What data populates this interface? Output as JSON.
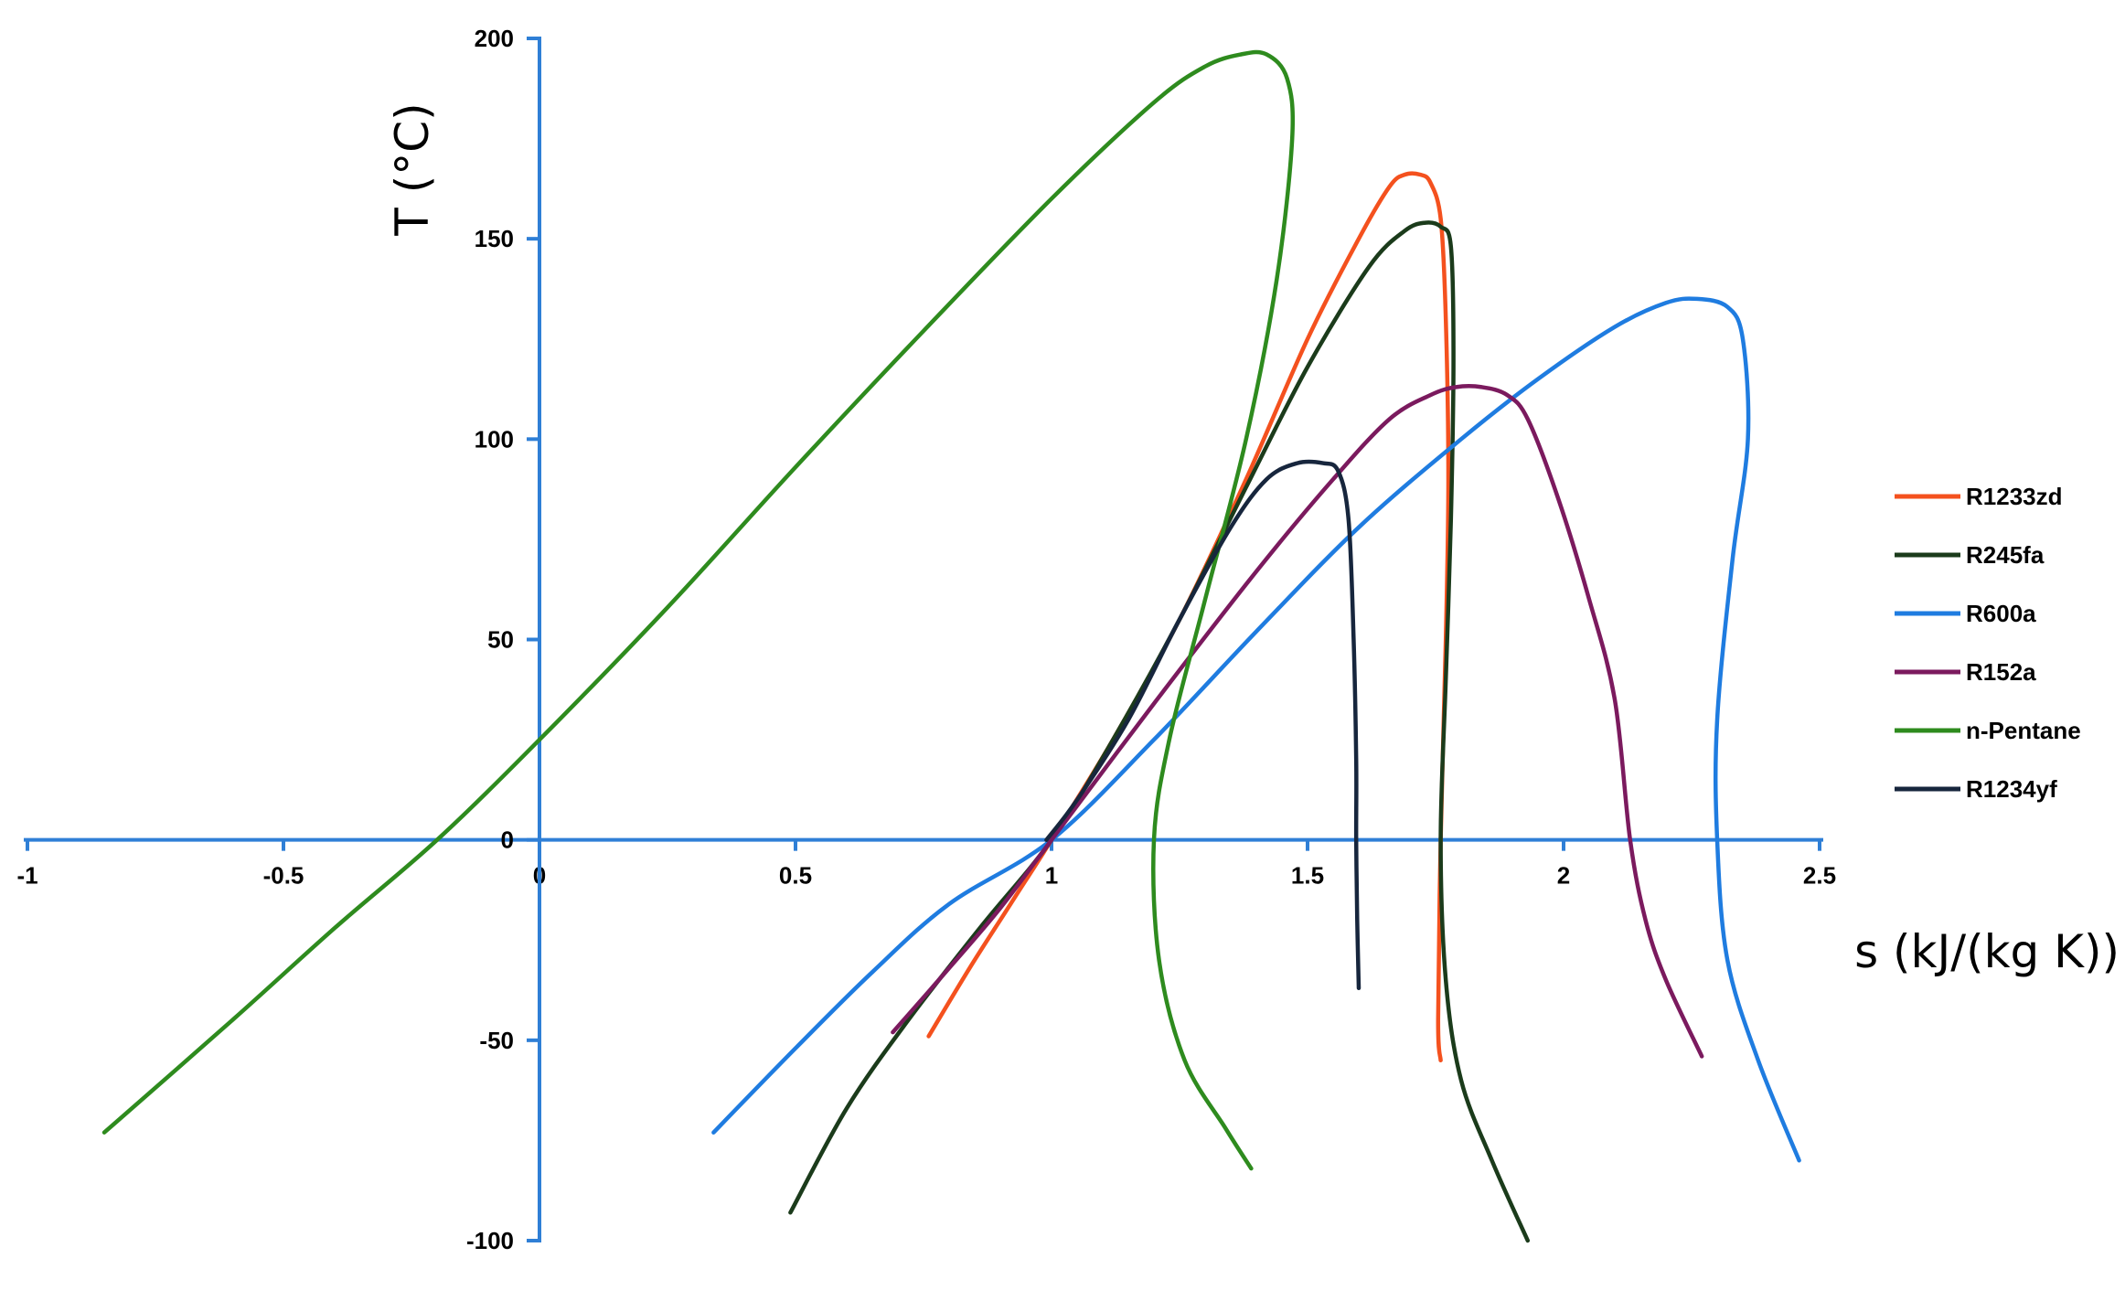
{
  "chart_data": {
    "type": "line",
    "title": "",
    "xlabel": "s (kJ/(kg K))",
    "ylabel": "T (°C)",
    "xlim": [
      -1,
      2.5
    ],
    "ylim": [
      -100,
      200
    ],
    "x_ticks": [
      "-1",
      "-0.5",
      "0",
      "0.5",
      "1",
      "1.5",
      "2",
      "2.5"
    ],
    "y_ticks": [
      "200",
      "150",
      "100",
      "50",
      "0",
      "-50",
      "-100"
    ],
    "grid": false,
    "legend_position": "right",
    "series": [
      {
        "name": "R1233zd",
        "color": "#f4511e",
        "points": [
          [
            0.76,
            -49
          ],
          [
            0.84,
            -32
          ],
          [
            0.92,
            -16
          ],
          [
            1.0,
            0
          ],
          [
            1.12,
            25
          ],
          [
            1.25,
            55
          ],
          [
            1.38,
            90
          ],
          [
            1.5,
            125
          ],
          [
            1.6,
            150
          ],
          [
            1.66,
            163
          ],
          [
            1.69,
            166
          ],
          [
            1.72,
            166
          ],
          [
            1.74,
            164
          ],
          [
            1.76,
            155
          ],
          [
            1.77,
            130
          ],
          [
            1.775,
            90
          ],
          [
            1.77,
            50
          ],
          [
            1.76,
            0
          ],
          [
            1.755,
            -45
          ],
          [
            1.76,
            -55
          ]
        ]
      },
      {
        "name": "R245fa",
        "color": "#1b3b1b",
        "points": [
          [
            0.49,
            -93
          ],
          [
            0.6,
            -67
          ],
          [
            0.72,
            -45
          ],
          [
            0.86,
            -22
          ],
          [
            1.0,
            0
          ],
          [
            1.12,
            25
          ],
          [
            1.25,
            55
          ],
          [
            1.38,
            88
          ],
          [
            1.5,
            118
          ],
          [
            1.62,
            143
          ],
          [
            1.69,
            152
          ],
          [
            1.73,
            154
          ],
          [
            1.76,
            153
          ],
          [
            1.78,
            148
          ],
          [
            1.785,
            120
          ],
          [
            1.78,
            80
          ],
          [
            1.77,
            40
          ],
          [
            1.76,
            0
          ],
          [
            1.77,
            -35
          ],
          [
            1.8,
            -60
          ],
          [
            1.86,
            -80
          ],
          [
            1.93,
            -100
          ]
        ]
      },
      {
        "name": "R600a",
        "color": "#1f7ce0",
        "points": [
          [
            0.34,
            -73
          ],
          [
            0.5,
            -52
          ],
          [
            0.65,
            -33
          ],
          [
            0.8,
            -16
          ],
          [
            1.0,
            0
          ],
          [
            1.2,
            25
          ],
          [
            1.4,
            52
          ],
          [
            1.6,
            78
          ],
          [
            1.8,
            100
          ],
          [
            1.95,
            115
          ],
          [
            2.1,
            128
          ],
          [
            2.2,
            134
          ],
          [
            2.26,
            135
          ],
          [
            2.32,
            133
          ],
          [
            2.35,
            125
          ],
          [
            2.36,
            100
          ],
          [
            2.33,
            70
          ],
          [
            2.3,
            30
          ],
          [
            2.3,
            0
          ],
          [
            2.32,
            -30
          ],
          [
            2.38,
            -55
          ],
          [
            2.46,
            -80
          ]
        ]
      },
      {
        "name": "R152a",
        "color": "#7b1a5e",
        "points": [
          [
            0.69,
            -48
          ],
          [
            0.8,
            -32
          ],
          [
            0.9,
            -17
          ],
          [
            1.0,
            0
          ],
          [
            1.2,
            34
          ],
          [
            1.4,
            67
          ],
          [
            1.55,
            90
          ],
          [
            1.66,
            105
          ],
          [
            1.74,
            111
          ],
          [
            1.79,
            113
          ],
          [
            1.84,
            113
          ],
          [
            1.89,
            111
          ],
          [
            1.93,
            105
          ],
          [
            1.99,
            85
          ],
          [
            2.05,
            60
          ],
          [
            2.1,
            35
          ],
          [
            2.13,
            0
          ],
          [
            2.16,
            -20
          ],
          [
            2.2,
            -35
          ],
          [
            2.27,
            -54
          ]
        ]
      },
      {
        "name": "n-Pentane",
        "color": "#2e8b1e",
        "points": [
          [
            -0.85,
            -73
          ],
          [
            -0.6,
            -45
          ],
          [
            -0.4,
            -22
          ],
          [
            -0.2,
            0
          ],
          [
            0.0,
            25
          ],
          [
            0.25,
            58
          ],
          [
            0.5,
            93
          ],
          [
            0.75,
            127
          ],
          [
            1.0,
            160
          ],
          [
            1.2,
            184
          ],
          [
            1.3,
            193
          ],
          [
            1.37,
            196
          ],
          [
            1.42,
            196
          ],
          [
            1.46,
            190
          ],
          [
            1.47,
            175
          ],
          [
            1.44,
            140
          ],
          [
            1.38,
            100
          ],
          [
            1.3,
            60
          ],
          [
            1.23,
            25
          ],
          [
            1.2,
            0
          ],
          [
            1.21,
            -30
          ],
          [
            1.26,
            -55
          ],
          [
            1.34,
            -72
          ],
          [
            1.39,
            -82
          ]
        ]
      },
      {
        "name": "R1234yf",
        "color": "#17263d",
        "points": [
          [
            0.99,
            0
          ],
          [
            1.05,
            10
          ],
          [
            1.15,
            30
          ],
          [
            1.25,
            55
          ],
          [
            1.35,
            78
          ],
          [
            1.42,
            90
          ],
          [
            1.48,
            94
          ],
          [
            1.53,
            94
          ],
          [
            1.56,
            92
          ],
          [
            1.58,
            80
          ],
          [
            1.59,
            50
          ],
          [
            1.595,
            20
          ],
          [
            1.595,
            0
          ],
          [
            1.597,
            -20
          ],
          [
            1.6,
            -37
          ]
        ]
      }
    ]
  }
}
